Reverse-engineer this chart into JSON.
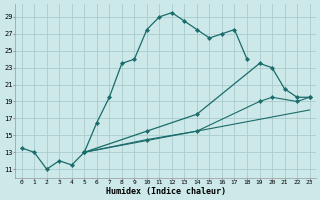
{
  "xlabel": "Humidex (Indice chaleur)",
  "xlim": [
    -0.5,
    23.5
  ],
  "ylim": [
    10.0,
    30.5
  ],
  "yticks": [
    11,
    13,
    15,
    17,
    19,
    21,
    23,
    25,
    27,
    29
  ],
  "xticks": [
    0,
    1,
    2,
    3,
    4,
    5,
    6,
    7,
    8,
    9,
    10,
    11,
    12,
    13,
    14,
    15,
    16,
    17,
    18,
    19,
    20,
    21,
    22,
    23
  ],
  "background_color": "#cce8e8",
  "grid_color": "#aacccc",
  "line_color": "#1a6b6b",
  "curve1_x": [
    0,
    1,
    2,
    3,
    4,
    5,
    6,
    7,
    8,
    9,
    10,
    11,
    12,
    13,
    14,
    15,
    16,
    17,
    18
  ],
  "curve1_y": [
    13.5,
    13.0,
    11.0,
    12.0,
    11.5,
    13.0,
    16.5,
    19.5,
    23.5,
    24.0,
    27.5,
    29.0,
    29.5,
    28.5,
    27.5,
    26.5,
    27.0,
    27.5,
    24.0
  ],
  "curve2_x": [
    5,
    10,
    14,
    19,
    20,
    21,
    22,
    23
  ],
  "curve2_y": [
    13.0,
    15.5,
    17.5,
    23.5,
    23.0,
    20.5,
    19.5,
    19.5
  ],
  "curve3_x": [
    5,
    10,
    14,
    19,
    20,
    22,
    23
  ],
  "curve3_y": [
    13.0,
    14.5,
    15.5,
    19.0,
    19.5,
    19.0,
    19.5
  ],
  "curve4_x": [
    5,
    23
  ],
  "curve4_y": [
    13.0,
    18.0
  ]
}
